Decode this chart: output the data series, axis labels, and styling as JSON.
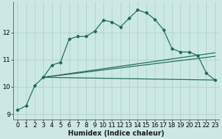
{
  "xlabel": "Humidex (Indice chaleur)",
  "bg_color": "#cce8e4",
  "grid_color": "#aed0cc",
  "line_color": "#1a6b5a",
  "xlim": [
    -0.5,
    23.5
  ],
  "ylim": [
    8.8,
    13.1
  ],
  "yticks": [
    9,
    10,
    11,
    12
  ],
  "xticks": [
    0,
    1,
    2,
    3,
    4,
    5,
    6,
    7,
    8,
    9,
    10,
    11,
    12,
    13,
    14,
    15,
    16,
    17,
    18,
    19,
    20,
    21,
    22,
    23
  ],
  "curve1_x": [
    0,
    1,
    2,
    3,
    4,
    5,
    6,
    7,
    8,
    9,
    10,
    11,
    12,
    13,
    14,
    15,
    16,
    17,
    18,
    19,
    20,
    21,
    22,
    23
  ],
  "curve1_y": [
    9.15,
    9.3,
    10.05,
    10.35,
    10.8,
    10.9,
    11.75,
    11.85,
    11.85,
    12.05,
    12.45,
    12.38,
    12.2,
    12.52,
    12.82,
    12.72,
    12.48,
    12.1,
    11.4,
    11.28,
    11.28,
    11.15,
    10.5,
    10.25
  ],
  "curve2_x": [
    3,
    23
  ],
  "curve2_y": [
    10.35,
    10.25
  ],
  "curve3_x": [
    3,
    23
  ],
  "curve3_y": [
    10.35,
    11.12
  ],
  "curve4_x": [
    3,
    23
  ],
  "curve4_y": [
    10.35,
    11.25
  ],
  "xlabel_fontsize": 7,
  "tick_fontsize": 6.5
}
